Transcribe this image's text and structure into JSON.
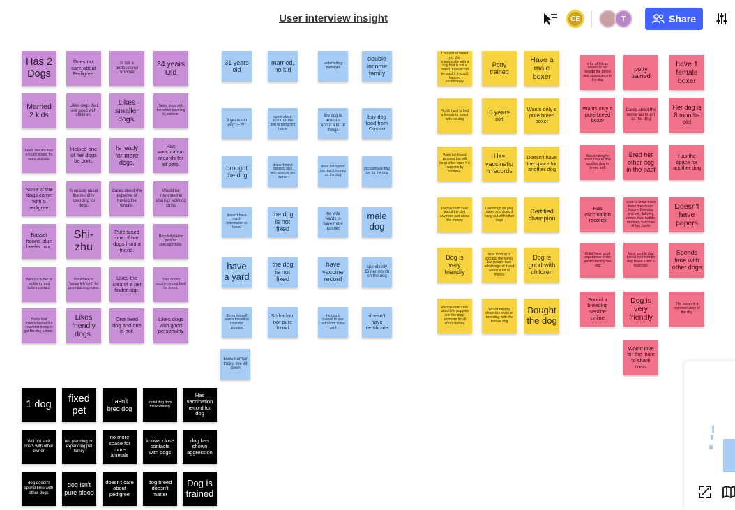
{
  "board": {
    "title": "User interview insight"
  },
  "toolbar": {
    "avatars": [
      {
        "initials": "CE",
        "bg": "#c9a227",
        "ring": "#f6d23f"
      },
      {
        "initials": "",
        "bg": "#c9a0a0",
        "ring": "#e6c6d6"
      },
      {
        "initials": "T",
        "bg": "#b687c9",
        "ring": "#e6c6d6"
      }
    ],
    "share_label": "Share"
  },
  "colors": {
    "purple": "#c88fd6",
    "blue": "#a6ccf5",
    "yellow": "#f6d23f",
    "pink": "#f1708a",
    "black": "#000000",
    "accent": "#4262ff"
  },
  "notes": {
    "purple": [
      "Has 2 Dogs",
      "Does not care about Pedigree.",
      "Is not a professional Groomer.",
      "34 years Old",
      "Married 2 kids",
      "Likes dogs that are good with children.",
      "Likes smaller dogs.",
      "Takes dogs with her when traveling by vehicle.",
      "Feels like she has enough space for more animals.",
      "Helped one of her dogs be born.",
      "Is ready for more dogs.",
      "Has vaccination records for all pets.",
      "None of the dogs come with a pedigree.",
      "Is unsure about the monthly spending for dogs.",
      "Cares about the expense of having the female.",
      "Would be interested in sharing/ splitting costs",
      "Basset hound blue heeler mix.",
      "Shi-zhu",
      "Purchased one of her dogs from a friend.",
      "Regularly takes pets for checkup/shots.",
      "Wants a buffer or profile to read before contact.",
      "Would like to \"swipe left/right\" for potential dog mates",
      "Likes the idea of a pet tinder app.",
      "Uses doctor recommended food for breed.",
      "Had a bad experience with a coworker trying to get his dog a mate.",
      "Likes friendly dogs.",
      "One fixed dog and one is not.",
      "Likes dogs with good personality"
    ],
    "blue": [
      "31 years old",
      "married, no kid",
      "underwriting manager",
      "double income family",
      "3 years old dog\"三件\"",
      "spent about $1000 on the dog to bring him home",
      "the dog is anxious about a lot of things",
      "buy dog food from Costco",
      "brought the dog",
      "doesn't mind splitting bills with another pet owner",
      "does not spend too much money on the dog",
      "occasionally buy toy for the dog",
      "doesn't have much information to breed",
      "the dog is not fixed",
      "the wife wants to have more puppies",
      "male dog",
      "have a yard",
      "the dog is not fixed",
      "have vaccine record",
      "spend only $5 per month on the dog",
      "Binnu himself wants to wait to consider puppies",
      "Shiba Inu, not pure blood",
      "the dog is trained to use bathroom in the yard",
      "doesn't have certificate",
      "know normal tricks, like sit down"
    ],
    "yellow": [
      "I would not breed my dog intentionally with a dog that is not a breed. I would not be mad if it would happen accidentally",
      "Potty trained",
      "Have a male boxer",
      "Find it hard to find a female to breed with his dog",
      "6 years old",
      "Wants only a pure breed boxer",
      "Want full breed puppies but will keep other ones if it happens by mistake",
      "Has vaccination records",
      "Doesn't have the space for another dog",
      "People dont care about the dog anymore just about the money",
      "Doesnt go on play dates and doesnt hang out with other dogs",
      "Certified champion",
      "Dog is very friendly",
      "Was looking to expand the family but people take advantage of it and wants a lot of money",
      "Dog is good with children",
      "People dont care about the puppies and the dogs anymore its all about money",
      "Would happily share the costs of breeding with the female dog",
      "Bought the dog"
    ],
    "pink": [
      "a lot of things matter to her beside the breed and appearance of the dog",
      "potty trained",
      "have 1 female boxer",
      "Wants only a pure breed boxer",
      "Cares about the owner as much as the dog",
      "Her dog is 8 months old",
      "Was looking for resources to find another dog to breed with",
      "Bred her other dog in the past",
      "Has the space for another dog",
      "Has vaccination records",
      "want to know more about their board, history, breeding and vet, delivery, owner, food habits, routines, vaccines of her family",
      "Doesn't have papers",
      "Didnt have good experience in the past breeding her dog",
      "Most people that breed their female dog make it into a business",
      "Spends time with other dogs",
      "Found a breeding service online",
      "Dog is very friendly",
      "The owner is a representation of the dog",
      "Would love for the male to share costs"
    ],
    "black": [
      "1 dog",
      "fixed pet",
      "hasn't bred dog",
      "found dog from friends/family",
      "Has vaccination record for dog",
      "Will not split costs with other owner",
      "not planning on expanding pet family",
      "no more space for more animals",
      "knows close contacts with dogs",
      "dog has shown aggression",
      "dog doesn't spend time with other dogs",
      "dog isn't pure blood",
      "doesn't care about pedigree",
      "dog breed doesn't matter",
      "Dog is trained"
    ]
  }
}
